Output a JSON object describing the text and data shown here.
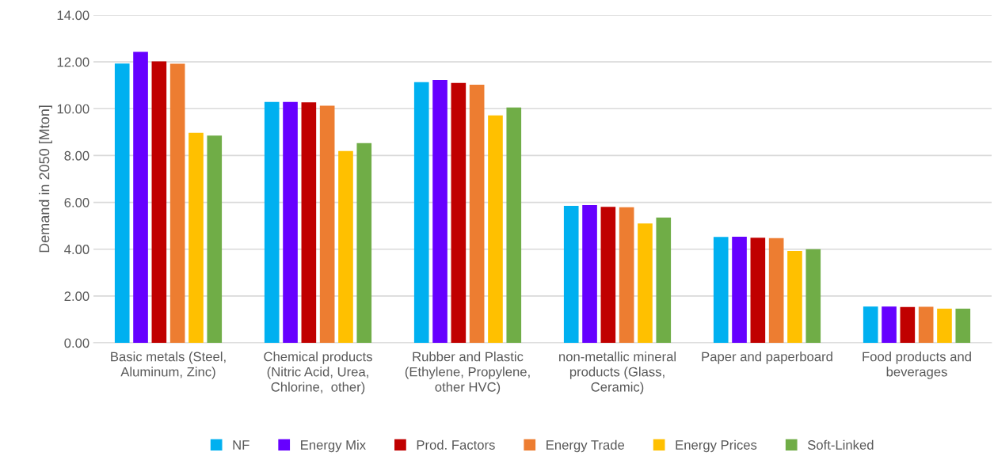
{
  "chart_data": {
    "type": "bar",
    "ylabel": "Demand in 2050 [Mton]",
    "categories": [
      "Basic metals (Steel, Aluminum, Zinc)",
      "Chemical products (Nitric Acid, Urea, Chlorine,  other)",
      "Rubber and Plastic (Ethylene, Propylene, other HVC)",
      "non-metallic mineral products (Glass, Ceramic)",
      "Paper and paperboard",
      "Food products and beverages"
    ],
    "series": [
      {
        "name": "NF",
        "color": "#00b0f0",
        "values": [
          11.93,
          10.29,
          11.13,
          5.85,
          4.52,
          1.55
        ]
      },
      {
        "name": "Energy Mix",
        "color": "#6600ff",
        "values": [
          12.43,
          10.29,
          11.23,
          5.88,
          4.53,
          1.55
        ]
      },
      {
        "name": "Prod. Factors",
        "color": "#c00000",
        "values": [
          12.02,
          10.27,
          11.1,
          5.81,
          4.49,
          1.53
        ]
      },
      {
        "name": "Energy Trade",
        "color": "#ed7d31",
        "values": [
          11.92,
          10.13,
          11.02,
          5.79,
          4.47,
          1.54
        ]
      },
      {
        "name": "Energy Prices",
        "color": "#ffc000",
        "values": [
          8.97,
          8.19,
          9.71,
          5.1,
          3.92,
          1.46
        ]
      },
      {
        "name": "Soft-Linked",
        "color": "#70ad47",
        "values": [
          8.85,
          8.53,
          10.05,
          5.35,
          4.0,
          1.46
        ]
      }
    ],
    "ylim": [
      0,
      14
    ],
    "yticks": [
      {
        "value": 0,
        "label": "0.00"
      },
      {
        "value": 2,
        "label": "2.00"
      },
      {
        "value": 4,
        "label": "4.00"
      },
      {
        "value": 6,
        "label": "6.00"
      },
      {
        "value": 8,
        "label": "8.00"
      },
      {
        "value": 10,
        "label": "10.00"
      },
      {
        "value": 12,
        "label": "12.00"
      },
      {
        "value": 14,
        "label": "14.00"
      }
    ],
    "grid": "y",
    "legend": "bottom"
  }
}
